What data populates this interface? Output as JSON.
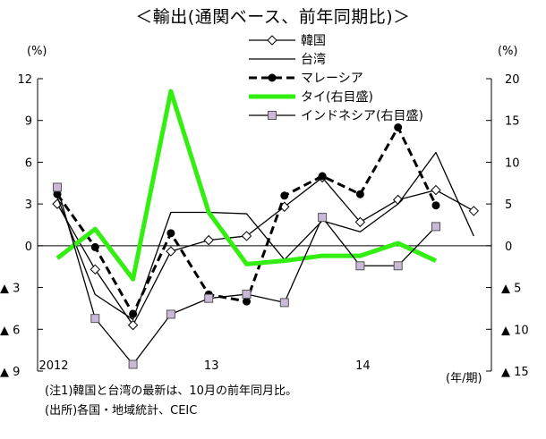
{
  "chart_data": {
    "type": "line",
    "title": "＜輸出(通関ベース、前年同期比)＞",
    "left_unit": "(%)",
    "right_unit": "(%)",
    "x_unit": "(年/期)",
    "x_tick_labels": [
      "2012",
      "13",
      "14"
    ],
    "y_left_ticks": [
      {
        "value": 12,
        "label": "12"
      },
      {
        "value": 9,
        "label": "9"
      },
      {
        "value": 6,
        "label": "6"
      },
      {
        "value": 3,
        "label": "3"
      },
      {
        "value": 0,
        "label": "0"
      },
      {
        "value": -3,
        "label": "▲ 3"
      },
      {
        "value": -6,
        "label": "▲ 6"
      },
      {
        "value": -9,
        "label": "▲ 9"
      }
    ],
    "y_right_ticks": [
      {
        "value": 20,
        "label": "20"
      },
      {
        "value": 15,
        "label": "15"
      },
      {
        "value": 10,
        "label": "10"
      },
      {
        "value": 5,
        "label": "5"
      },
      {
        "value": 0,
        "label": "0"
      },
      {
        "value": -5,
        "label": "▲ 5"
      },
      {
        "value": -10,
        "label": "▲ 10"
      },
      {
        "value": -15,
        "label": "▲ 15"
      }
    ],
    "ylim_left": [
      -9,
      12
    ],
    "ylim_right": [
      -15,
      20
    ],
    "x": [
      0,
      1,
      2,
      3,
      4,
      5,
      6,
      7,
      8,
      9,
      10,
      11
    ],
    "series": [
      {
        "name": "韓国",
        "axis": "left",
        "color": "#000000",
        "style": "diamond",
        "x": [
          0,
          1,
          2,
          3,
          4,
          5,
          6,
          7,
          8,
          9,
          10,
          11
        ],
        "values": [
          3.0,
          -1.7,
          -5.7,
          -0.4,
          0.4,
          0.7,
          2.8,
          4.9,
          1.7,
          3.3,
          4.0,
          2.5
        ]
      },
      {
        "name": "台湾",
        "axis": "left",
        "color": "#000000",
        "style": "plain",
        "x": [
          0,
          1,
          2,
          3,
          4,
          5,
          6,
          7,
          8,
          9,
          10,
          11
        ],
        "values": [
          3.5,
          -3.5,
          -5.3,
          2.4,
          2.4,
          2.3,
          -1.0,
          1.8,
          1.0,
          3.0,
          6.7,
          0.7
        ]
      },
      {
        "name": "マレーシア",
        "axis": "left",
        "color": "#000000",
        "style": "dashed-dot",
        "x": [
          0,
          1,
          2,
          3,
          4,
          5,
          6,
          7,
          8,
          9,
          10
        ],
        "values": [
          3.7,
          -0.1,
          -4.9,
          0.9,
          -3.5,
          -4.0,
          3.6,
          5.0,
          3.7,
          8.5,
          2.9
        ]
      },
      {
        "name": "タイ(右目盛)",
        "axis": "right",
        "color": "#33ee11",
        "style": "thick",
        "x": [
          0,
          1,
          2,
          3,
          4,
          5,
          6,
          7,
          8,
          9,
          10
        ],
        "values": [
          -1.5,
          2.0,
          -4.0,
          18.5,
          4.0,
          -2.2,
          -1.8,
          -1.2,
          -1.2,
          0.3,
          -1.8
        ]
      },
      {
        "name": "インドネシア(右目盛)",
        "axis": "right",
        "color": "#000000",
        "style": "square",
        "x": [
          0,
          1,
          2,
          3,
          4,
          5,
          6,
          7,
          8,
          9,
          10
        ],
        "values": [
          7.0,
          -8.7,
          -14.2,
          -8.2,
          -6.3,
          -5.8,
          -6.8,
          3.4,
          -2.4,
          -2.4,
          2.3
        ]
      }
    ]
  },
  "notes": [
    "(注1)韓国と台湾の最新は、10月の前年同月比。",
    "(出所)各国・地域統計、CEIC"
  ]
}
